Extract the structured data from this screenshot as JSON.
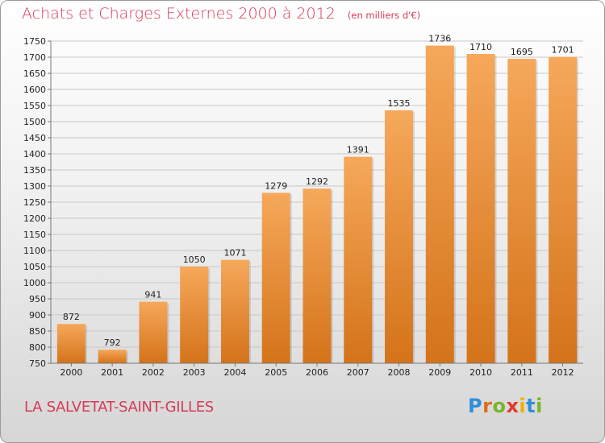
{
  "title": "Achats et Charges Externes 2000 à 2012",
  "unit_note": "(en milliers d'€)",
  "commune": "LA SALVETAT-SAINT-GILLES",
  "logo": {
    "text": "Proxiti",
    "letter_colors": [
      "#2f8fd8",
      "#e36b1a",
      "#7ab52a",
      "#e33a2a",
      "#f0b000",
      "#2f8fd8",
      "#7ab52a"
    ]
  },
  "colors": {
    "title": "#d63b56",
    "bar_light": "#f6a85a",
    "bar_dark": "#d4731a"
  },
  "chart_data": {
    "type": "bar",
    "title": "Achats et Charges Externes 2000 à 2012",
    "xlabel": "",
    "ylabel": "",
    "categories": [
      "2000",
      "2001",
      "2002",
      "2003",
      "2004",
      "2005",
      "2006",
      "2007",
      "2008",
      "2009",
      "2010",
      "2011",
      "2012"
    ],
    "values": [
      872,
      792,
      941,
      1050,
      1071,
      1279,
      1292,
      1391,
      1535,
      1736,
      1710,
      1695,
      1701
    ],
    "ylim": [
      750,
      1750
    ],
    "yticks": [
      750,
      800,
      850,
      900,
      950,
      1000,
      1050,
      1100,
      1150,
      1200,
      1250,
      1300,
      1350,
      1400,
      1450,
      1500,
      1550,
      1600,
      1650,
      1700,
      1750
    ],
    "grid": true,
    "data_labels": true
  }
}
